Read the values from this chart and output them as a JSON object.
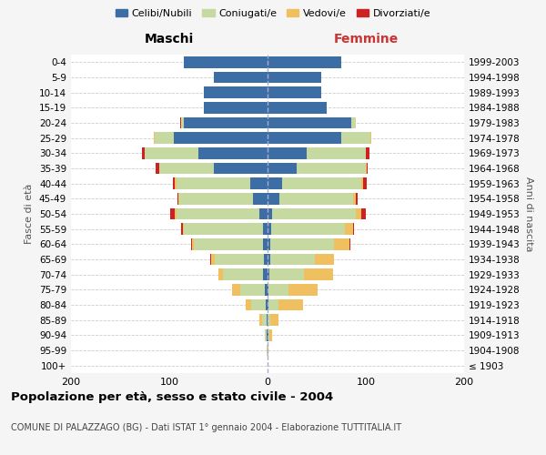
{
  "age_groups": [
    "100+",
    "95-99",
    "90-94",
    "85-89",
    "80-84",
    "75-79",
    "70-74",
    "65-69",
    "60-64",
    "55-59",
    "50-54",
    "45-49",
    "40-44",
    "35-39",
    "30-34",
    "25-29",
    "20-24",
    "15-19",
    "10-14",
    "5-9",
    "0-4"
  ],
  "birth_years": [
    "≤ 1903",
    "1904-1908",
    "1909-1913",
    "1914-1918",
    "1919-1923",
    "1924-1928",
    "1929-1933",
    "1934-1938",
    "1939-1943",
    "1944-1948",
    "1949-1953",
    "1954-1958",
    "1959-1963",
    "1964-1968",
    "1969-1973",
    "1974-1978",
    "1979-1983",
    "1984-1988",
    "1989-1993",
    "1994-1998",
    "1999-2003"
  ],
  "maschi": {
    "celibi": [
      0,
      0,
      1,
      1,
      2,
      3,
      5,
      4,
      5,
      5,
      8,
      15,
      18,
      55,
      70,
      95,
      85,
      65,
      65,
      55,
      85
    ],
    "coniugati": [
      0,
      1,
      2,
      5,
      15,
      25,
      40,
      50,
      70,
      80,
      85,
      75,
      75,
      55,
      55,
      20,
      3,
      0,
      0,
      0,
      0
    ],
    "vedovi": [
      0,
      0,
      0,
      2,
      5,
      8,
      5,
      3,
      2,
      1,
      1,
      1,
      1,
      0,
      0,
      1,
      0,
      0,
      0,
      0,
      0
    ],
    "divorziati": [
      0,
      0,
      0,
      0,
      0,
      0,
      0,
      1,
      1,
      2,
      5,
      1,
      2,
      4,
      3,
      0,
      1,
      0,
      0,
      0,
      0
    ]
  },
  "femmine": {
    "nubili": [
      0,
      0,
      1,
      0,
      1,
      1,
      2,
      3,
      3,
      4,
      5,
      12,
      15,
      30,
      40,
      75,
      85,
      60,
      55,
      55,
      75
    ],
    "coniugate": [
      0,
      0,
      1,
      3,
      10,
      20,
      35,
      45,
      65,
      75,
      85,
      75,
      80,
      70,
      60,
      30,
      5,
      0,
      0,
      0,
      0
    ],
    "vedove": [
      0,
      1,
      3,
      8,
      25,
      30,
      30,
      20,
      15,
      8,
      5,
      3,
      2,
      1,
      0,
      1,
      0,
      0,
      0,
      0,
      0
    ],
    "divorziate": [
      0,
      0,
      0,
      0,
      0,
      0,
      0,
      0,
      1,
      1,
      5,
      2,
      4,
      1,
      4,
      0,
      0,
      0,
      0,
      0,
      0
    ]
  },
  "colors": {
    "celibi": "#3c6ea5",
    "coniugati": "#c5d9a0",
    "vedovi": "#f0c060",
    "divorziati": "#cc2222"
  },
  "title": "Popolazione per età, sesso e stato civile - 2004",
  "subtitle": "COMUNE DI PALAZZAGO (BG) - Dati ISTAT 1° gennaio 2004 - Elaborazione TUTTITALIA.IT",
  "xlabel_left": "Maschi",
  "xlabel_right": "Femmine",
  "ylabel_left": "Fasce di età",
  "ylabel_right": "Anni di nascita",
  "xlim": 200,
  "bg_color": "#f5f5f5",
  "plot_bg": "#ffffff",
  "legend_labels": [
    "Celibi/Nubili",
    "Coniugati/e",
    "Vedovi/e",
    "Divorziati/e"
  ]
}
